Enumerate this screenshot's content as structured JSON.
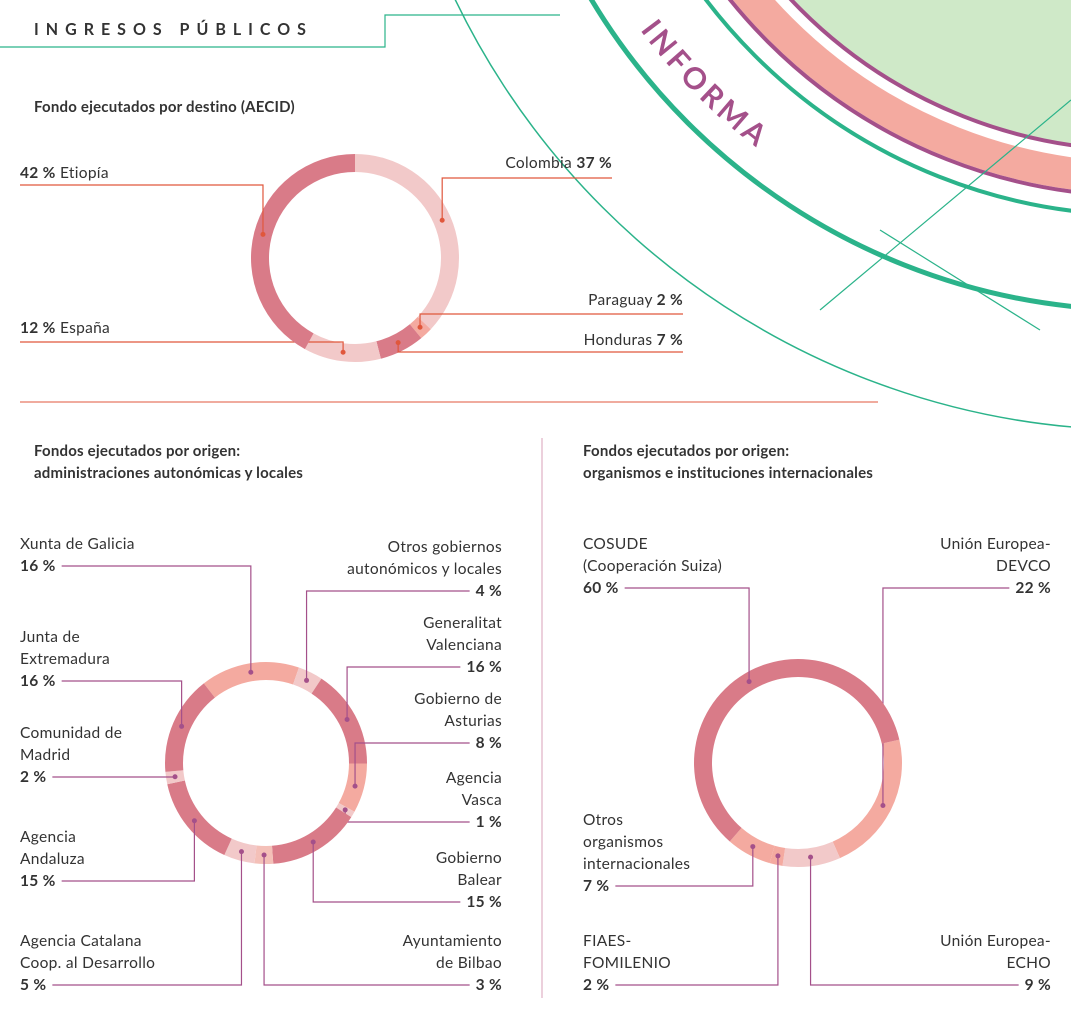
{
  "header": {
    "title": "INGRESOS PÚBLICOS",
    "side_label": "INFORMA"
  },
  "chart_data": [
    {
      "type": "pie",
      "title": "Fondo ejecutados por destino (AECID)",
      "categories": [
        "Colombia",
        "Paraguay",
        "Honduras",
        "España",
        "Etiopía"
      ],
      "values": [
        37,
        2,
        7,
        12,
        42
      ],
      "value_labels": [
        "37 %",
        "2 %",
        "7 %",
        "12 %",
        "42 %"
      ],
      "colors": [
        "#f2c9c9",
        "#f4aaa0",
        "#d97b88",
        "#f2c9c9",
        "#d97b88"
      ]
    },
    {
      "type": "pie",
      "title": "Fondos ejecutados por origen:\nadministraciones autonómicas y locales",
      "categories": [
        "Xunta de Galicia",
        "Otros gobiernos\nautonómicos y locales",
        "Generalitat\nValenciana",
        "Gobierno de\nAsturias",
        "Agencia\nVasca",
        "Gobierno\nBalear",
        "Ayuntamiento\nde Bilbao",
        "Agencia Catalana\nCoop. al Desarrollo",
        "Agencia\nAndaluza",
        "Comunidad de\nMadrid",
        "Junta de\nExtremadura"
      ],
      "values": [
        16,
        4,
        16,
        8,
        1,
        15,
        3,
        5,
        15,
        2,
        16
      ],
      "value_labels": [
        "16 %",
        "4 %",
        "16 %",
        "8 %",
        "1 %",
        "15 %",
        "3 %",
        "5 %",
        "15 %",
        "2 %",
        "16 %"
      ],
      "colors": [
        "#f4aaa0",
        "#f2c9c9",
        "#d97b88",
        "#f4aaa0",
        "#f2c9c9",
        "#d97b88",
        "#f4c0b8",
        "#f2c9c9",
        "#d97b88",
        "#f2c9c9",
        "#d97b88"
      ]
    },
    {
      "type": "pie",
      "title": "Fondos ejecutados por origen:\norganismos e instituciones internacionales",
      "categories": [
        "Unión Europea-\nDEVCO",
        "Unión Europea-\nECHO",
        "FIAES-\nFOMILENIO",
        "Otros\norganismos\ninternacionales",
        "COSUDE\n(Cooperación Suiza)"
      ],
      "values": [
        22,
        9,
        2,
        7,
        60
      ],
      "value_labels": [
        "22 %",
        "9 %",
        "2 %",
        "7 %",
        "60 %"
      ],
      "colors": [
        "#f4aaa0",
        "#f2c9c9",
        "#f4aaa0",
        "#f4aaa0",
        "#d97b88"
      ]
    }
  ]
}
